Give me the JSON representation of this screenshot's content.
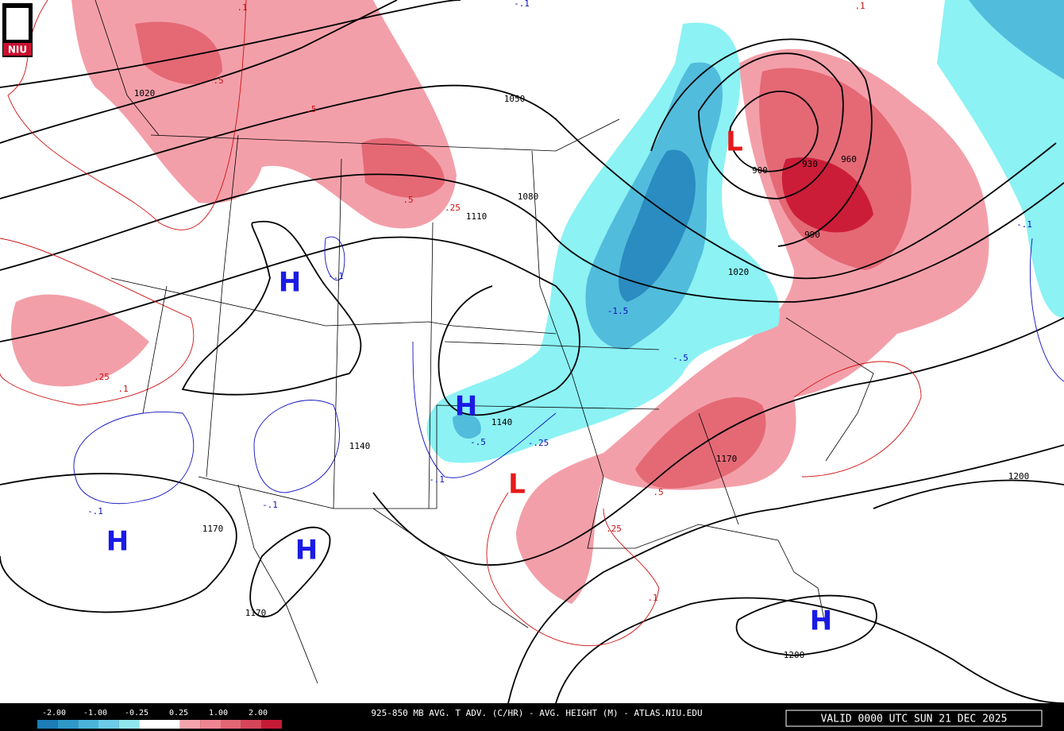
{
  "logo": "NIU",
  "title": "925-850 MB AVG. T ADV. (C/HR) - AVG. HEIGHT (M) - ATLAS.NIU.EDU",
  "valid": "VALID 0000 UTC SUN 21 DEC 2025",
  "colorbar": {
    "labels": [
      "-2.00",
      "-1.00",
      "-0.25",
      "0.25",
      "1.00",
      "2.00"
    ],
    "colors": [
      "#1c7cb8",
      "#2f98c8",
      "#4ab3da",
      "#6ccbe6",
      "#90e6ee",
      "#ffffff",
      "#ffffff",
      "#f6a3ab",
      "#ee8590",
      "#e46675",
      "#d6455a",
      "#c41b36"
    ]
  },
  "centers": [
    "H",
    "H",
    "H",
    "H",
    "H",
    "L",
    "L"
  ],
  "height_labels": [
    "1020",
    "1050",
    "1080",
    "1110",
    "1140",
    "1140",
    "1170",
    "1170",
    "1170",
    "1200",
    "1200",
    "1020",
    "900",
    "930",
    "960",
    "990"
  ],
  "warm_labels": [
    ".1",
    ".1",
    ".5",
    ".5",
    ".5",
    ".25",
    ".25",
    ".1",
    ".5",
    ".25",
    ".1"
  ],
  "cold_labels": [
    "-.1",
    "-.1",
    "-1.5",
    "-.5",
    "-.5",
    "-.25",
    "-.1",
    "-.1",
    "-.1",
    "-.1"
  ]
}
